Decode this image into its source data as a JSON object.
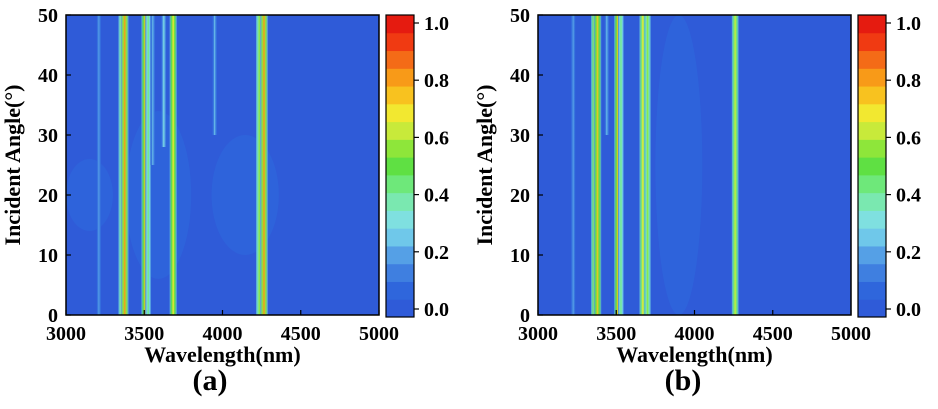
{
  "chart_data": [
    {
      "type": "heatmap",
      "panel_label": "(a)",
      "xlabel": "Wavelength(nm)",
      "ylabel": "Incident Angle(°)",
      "xlim": [
        3000,
        5000
      ],
      "ylim": [
        0,
        50
      ],
      "x_ticks": [
        3000,
        3500,
        4000,
        4500,
        5000
      ],
      "y_ticks": [
        0,
        10,
        20,
        30,
        40,
        50
      ],
      "colorbar": {
        "range": [
          0.0,
          1.0
        ],
        "ticks": [
          0.0,
          0.2,
          0.4,
          0.6,
          0.8,
          1.0
        ],
        "tick_labels": [
          "0.0",
          "0.2",
          "0.4",
          "0.6",
          "0.8",
          "1.0"
        ],
        "colors": [
          "#2f5bd8",
          "#2f66dc",
          "#3f7fe0",
          "#55a0e6",
          "#6fc8ea",
          "#7fe0e0",
          "#7ae8b0",
          "#6ee87a",
          "#5fe043",
          "#8ee63a",
          "#c8ea3a",
          "#f2e830",
          "#f8c21f",
          "#f89a18",
          "#f46b17",
          "#f03a12",
          "#e51b10"
        ]
      },
      "background_value": 0.03,
      "diffuse_regions": [
        {
          "x_range": [
            3000,
            3300
          ],
          "y_range": [
            14,
            26
          ],
          "value": 0.07
        },
        {
          "x_range": [
            3380,
            3800
          ],
          "y_range": [
            6,
            34
          ],
          "value": 0.06
        },
        {
          "x_range": [
            3930,
            4360
          ],
          "y_range": [
            10,
            30
          ],
          "value": 0.09
        }
      ],
      "bands": [
        {
          "wavelength": 3210,
          "value": 0.18,
          "angle_range": [
            0,
            50
          ]
        },
        {
          "wavelength": 3355,
          "value": 0.55,
          "angle_range": [
            0,
            50
          ]
        },
        {
          "wavelength": 3375,
          "value": 0.78,
          "angle_range": [
            0,
            50
          ]
        },
        {
          "wavelength": 3505,
          "value": 0.72,
          "angle_range": [
            0,
            50
          ]
        },
        {
          "wavelength": 3525,
          "value": 0.45,
          "angle_range": [
            0,
            50
          ]
        },
        {
          "wavelength": 3555,
          "value": 0.25,
          "angle_range": [
            25,
            50
          ]
        },
        {
          "wavelength": 3625,
          "value": 0.3,
          "angle_range": [
            28,
            50
          ]
        },
        {
          "wavelength": 3685,
          "value": 0.7,
          "angle_range": [
            0,
            50
          ]
        },
        {
          "wavelength": 3950,
          "value": 0.25,
          "angle_range": [
            30,
            50
          ]
        },
        {
          "wavelength": 4235,
          "value": 0.58,
          "angle_range": [
            0,
            50
          ]
        },
        {
          "wavelength": 4265,
          "value": 0.78,
          "angle_range": [
            0,
            50
          ]
        }
      ]
    },
    {
      "type": "heatmap",
      "panel_label": "(b)",
      "xlabel": "Wavelength(nm)",
      "ylabel": "Incident Angle(°)",
      "xlim": [
        3000,
        5000
      ],
      "ylim": [
        0,
        50
      ],
      "x_ticks": [
        3000,
        3500,
        4000,
        4500,
        5000
      ],
      "y_ticks": [
        0,
        10,
        20,
        30,
        40,
        50
      ],
      "colorbar": {
        "range": [
          0.0,
          1.0
        ],
        "ticks": [
          0.0,
          0.2,
          0.4,
          0.6,
          0.8,
          1.0
        ],
        "tick_labels": [
          "0.0",
          "0.2",
          "0.4",
          "0.6",
          "0.8",
          "1.0"
        ],
        "colors": [
          "#2f5bd8",
          "#2f66dc",
          "#3f7fe0",
          "#55a0e6",
          "#6fc8ea",
          "#7fe0e0",
          "#7ae8b0",
          "#6ee87a",
          "#5fe043",
          "#8ee63a",
          "#c8ea3a",
          "#f2e830",
          "#f8c21f",
          "#f89a18",
          "#f46b17",
          "#f03a12",
          "#e51b10"
        ]
      },
      "background_value": 0.03,
      "diffuse_regions": [
        {
          "x_range": [
            3750,
            4050
          ],
          "y_range": [
            0,
            50
          ],
          "value": 0.06
        }
      ],
      "bands": [
        {
          "wavelength": 3225,
          "value": 0.2,
          "angle_range": [
            0,
            50
          ]
        },
        {
          "wavelength": 3360,
          "value": 0.6,
          "angle_range": [
            0,
            50
          ]
        },
        {
          "wavelength": 3380,
          "value": 0.75,
          "angle_range": [
            0,
            50
          ]
        },
        {
          "wavelength": 3440,
          "value": 0.25,
          "angle_range": [
            30,
            50
          ]
        },
        {
          "wavelength": 3510,
          "value": 0.72,
          "angle_range": [
            0,
            50
          ]
        },
        {
          "wavelength": 3530,
          "value": 0.45,
          "angle_range": [
            0,
            50
          ]
        },
        {
          "wavelength": 3670,
          "value": 0.65,
          "angle_range": [
            0,
            50
          ]
        },
        {
          "wavelength": 3700,
          "value": 0.55,
          "angle_range": [
            0,
            50
          ]
        },
        {
          "wavelength": 4260,
          "value": 0.62,
          "angle_range": [
            0,
            50
          ]
        }
      ]
    }
  ]
}
